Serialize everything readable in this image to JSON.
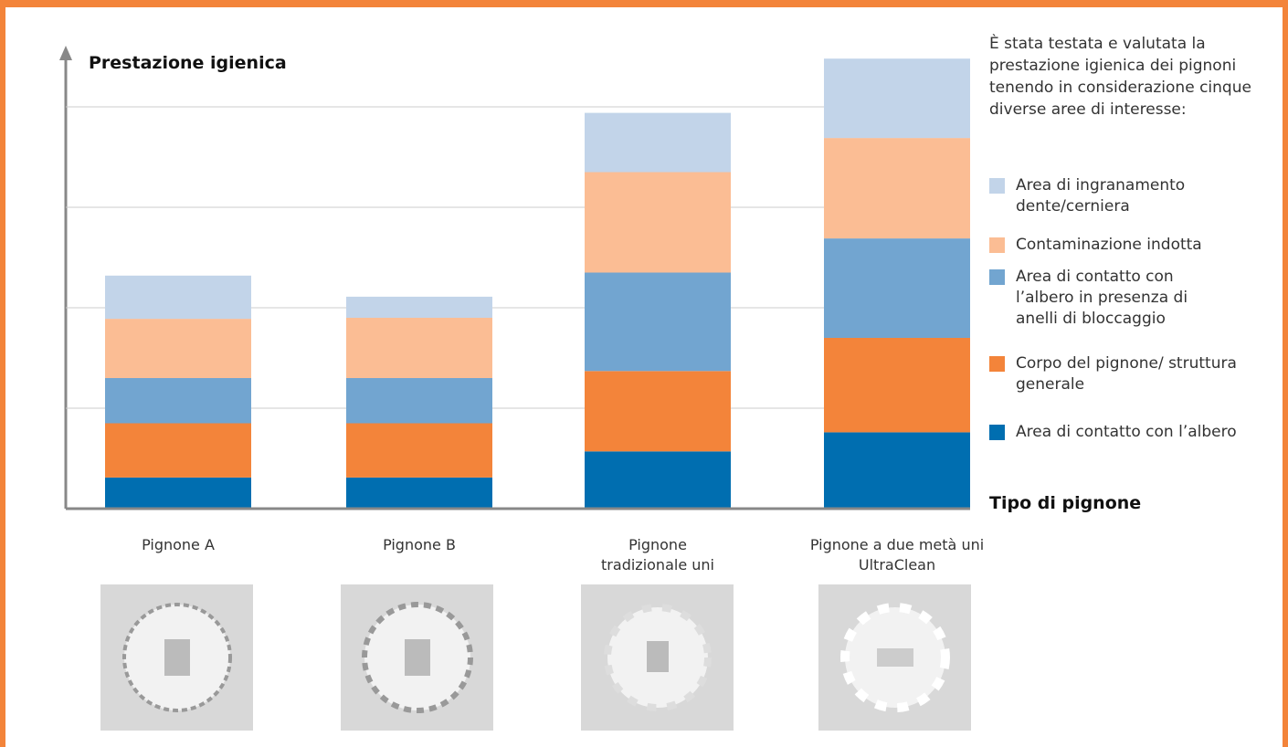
{
  "chart_data": {
    "type": "stacked_bar",
    "title": "Prestazione igienica",
    "x_label": "Tipo di pignone",
    "description": "È stata testata e valutata la prestazione igienica dei pignoni tenendo in considerazione cinque diverse aree di interesse:",
    "categories": [
      "Pignone A",
      "Pignone B",
      "Pignone tradizionale uni",
      "Pignone a due metà uni UltraClean"
    ],
    "series": [
      {
        "name": "Area di contatto con l’albero",
        "color": "#006eb0",
        "values": [
          0.31,
          0.31,
          0.57,
          0.76
        ]
      },
      {
        "name": "Corpo del pignone/ struttura generale",
        "color": "#f3843a",
        "values": [
          0.54,
          0.54,
          0.8,
          0.94
        ]
      },
      {
        "name": "Area di contatto con l’albero in presenza di anelli di bloccaggio",
        "color": "#72a5d0",
        "values": [
          0.45,
          0.45,
          0.98,
          0.99
        ]
      },
      {
        "name": "Contaminazione indotta",
        "color": "#fbbd94",
        "values": [
          0.59,
          0.6,
          1.0,
          1.0
        ]
      },
      {
        "name": "Area di ingranamento dente/cerniera",
        "color": "#c2d4e9",
        "values": [
          0.43,
          0.21,
          0.59,
          0.79
        ]
      }
    ],
    "ylim": [
      0,
      4.6
    ],
    "yticks": [
      1,
      2,
      3,
      4
    ],
    "grid": true
  }
}
